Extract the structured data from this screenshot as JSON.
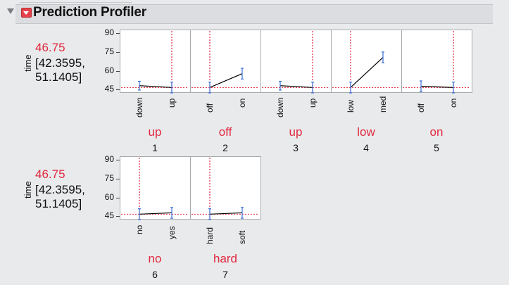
{
  "title": "Prediction Profiler",
  "response_label": "time",
  "predicted_value": "46.75",
  "ci_lower": "[42.3595,",
  "ci_upper": "51.1405]",
  "y_ticks": [
    "90",
    "75",
    "60",
    "45"
  ],
  "y_range": [
    43,
    93
  ],
  "reference_line_y": 46.75,
  "factors": [
    {
      "index": "1",
      "current": "up",
      "levels": [
        "down",
        "up"
      ],
      "means": [
        48.2,
        46.75
      ],
      "err": [
        3.5,
        4.3
      ],
      "cur_idx": 1
    },
    {
      "index": "2",
      "current": "off",
      "levels": [
        "off",
        "on"
      ],
      "means": [
        46.75,
        57.8
      ],
      "err": [
        4.3,
        4.3
      ],
      "cur_idx": 0
    },
    {
      "index": "3",
      "current": "up",
      "levels": [
        "down",
        "up"
      ],
      "means": [
        48.2,
        46.75
      ],
      "err": [
        3.5,
        4.3
      ],
      "cur_idx": 1
    },
    {
      "index": "4",
      "current": "low",
      "levels": [
        "low",
        "med"
      ],
      "means": [
        46.75,
        70.8
      ],
      "err": [
        4.3,
        4.3
      ],
      "cur_idx": 0
    },
    {
      "index": "5",
      "current": "on",
      "levels": [
        "off",
        "on"
      ],
      "means": [
        47.7,
        46.75
      ],
      "err": [
        4.3,
        4.3
      ],
      "cur_idx": 1
    },
    {
      "index": "6",
      "current": "no",
      "levels": [
        "no",
        "yes"
      ],
      "means": [
        46.75,
        47.8
      ],
      "err": [
        4.3,
        4.3
      ],
      "cur_idx": 0
    },
    {
      "index": "7",
      "current": "hard",
      "levels": [
        "hard",
        "soft"
      ],
      "means": [
        46.75,
        47.8
      ],
      "err": [
        4.3,
        4.3
      ],
      "cur_idx": 0
    }
  ],
  "colors": {
    "line": "#000000",
    "error_bar": "#3b6fd6",
    "reference": "#e0293f",
    "current_value": "#e0293f"
  }
}
